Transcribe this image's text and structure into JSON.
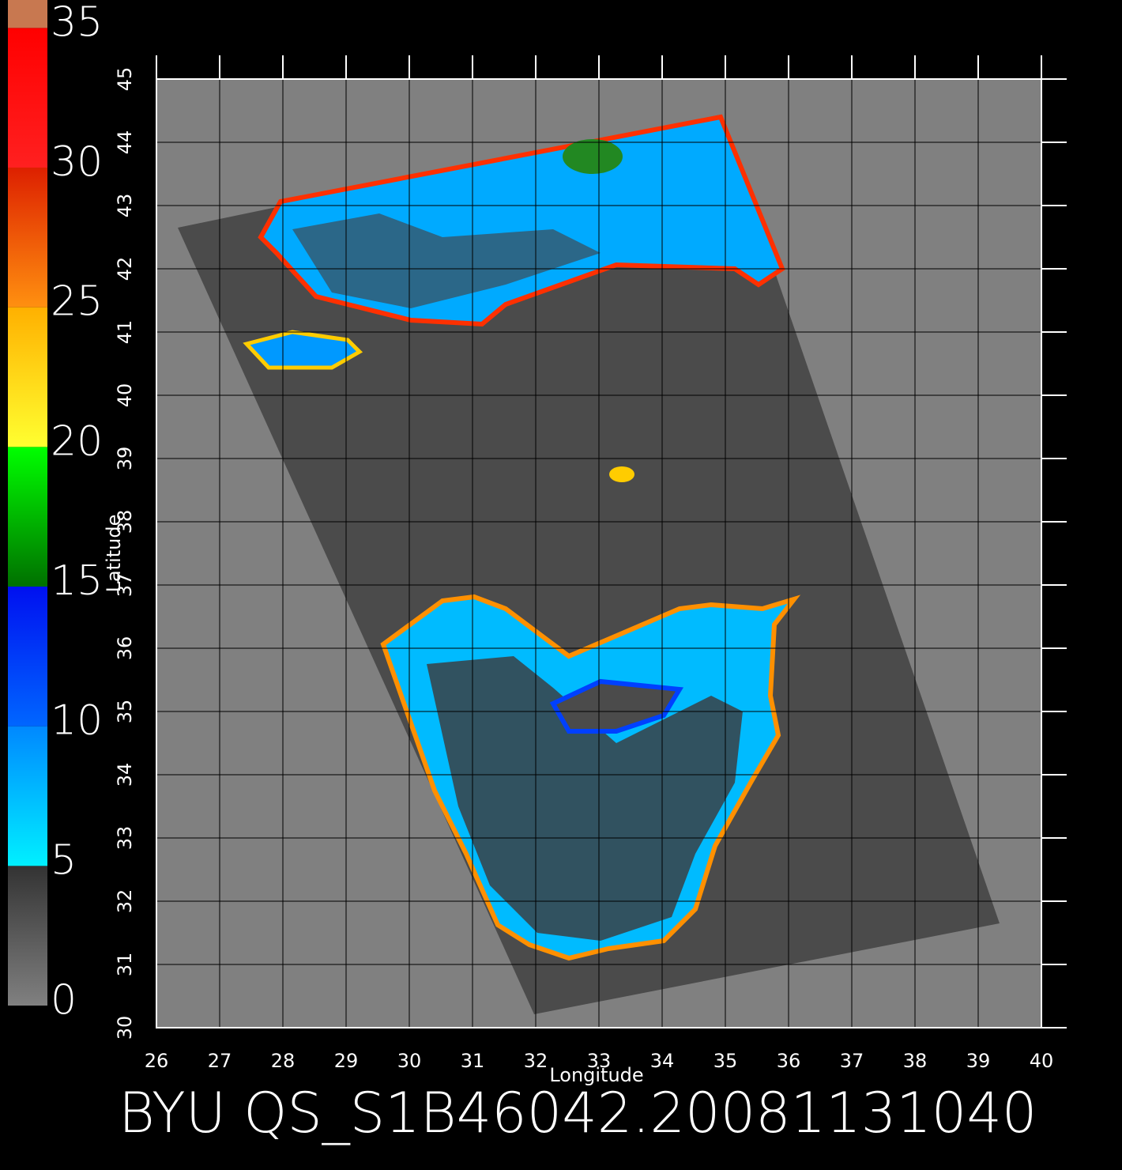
{
  "title": "BYU QS_S1B46042.20081131040",
  "map": {
    "xlabel": "Longitude",
    "ylabel": "Latitude",
    "xlim": [
      26,
      40
    ],
    "ylim": [
      30,
      45
    ],
    "xticks": [
      26,
      27,
      28,
      29,
      30,
      31,
      32,
      33,
      34,
      35,
      36,
      37,
      38,
      39,
      40
    ],
    "yticks": [
      30,
      31,
      32,
      33,
      34,
      35,
      36,
      37,
      38,
      39,
      40,
      41,
      42,
      43,
      44,
      45
    ],
    "background": "#808080",
    "swath_color": "#4b4b4b",
    "grid": true
  },
  "colorbar": {
    "lim": [
      0,
      36
    ],
    "ticks": [
      0,
      5,
      10,
      15,
      20,
      25,
      30,
      35
    ],
    "colors": [
      [
        "#808080",
        "#333333"
      ],
      [
        "#00f0ff",
        "#0088ff"
      ],
      [
        "#0066ff",
        "#0010f0"
      ],
      [
        "#007000",
        "#00ff00"
      ],
      [
        "#ffff30",
        "#ffb000"
      ],
      [
        "#ff9010",
        "#dd2000"
      ],
      [
        "#ff2020",
        "#ff0000"
      ],
      [
        "#c87850",
        "#c87850"
      ]
    ]
  }
}
